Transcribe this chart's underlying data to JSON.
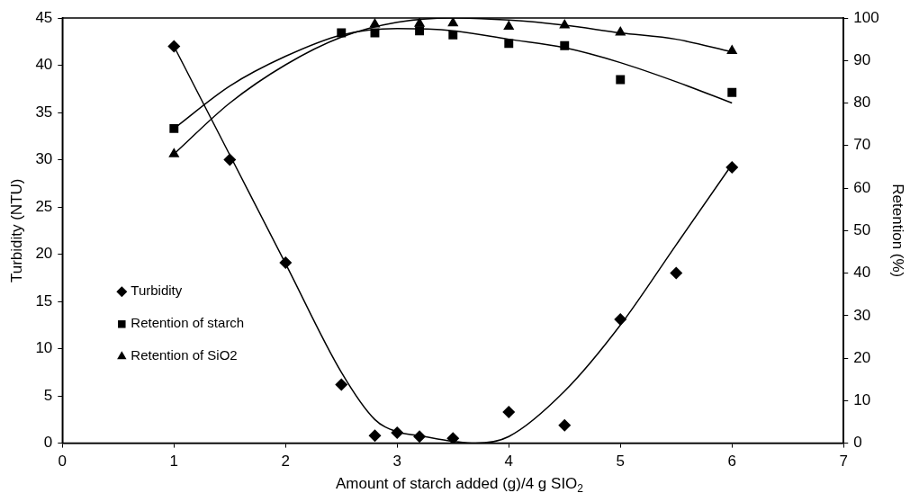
{
  "chart_data": {
    "type": "scatter",
    "xlabel": "Amount of starch added (g)/4 g SIO$_{2}$",
    "ylabel": "Turbidity (NTU)",
    "y2label": "Retention (%)",
    "xlim": [
      0,
      7
    ],
    "xticks": [
      0,
      1,
      2,
      3,
      4,
      5,
      6,
      7
    ],
    "ylim": [
      0,
      45
    ],
    "yticks": [
      0,
      5,
      10,
      15,
      20,
      25,
      30,
      35,
      40,
      45
    ],
    "y2lim": [
      0,
      100
    ],
    "y2ticks": [
      0,
      10,
      20,
      30,
      40,
      50,
      60,
      70,
      80,
      90,
      100
    ],
    "grid": false,
    "legend": "left",
    "series": [
      {
        "name": "Turbidity",
        "marker": "diamond",
        "color": "#000000",
        "x": [
          1,
          1.5,
          2,
          2.5,
          2.8,
          3,
          3.2,
          3.5,
          4,
          4.5,
          5,
          5.5,
          6
        ],
        "values": [
          42,
          30,
          19.1,
          6.2,
          0.8,
          1.1,
          0.7,
          0.5,
          3.3,
          1.9,
          13.1,
          18,
          29.2
        ]
      },
      {
        "name": "Retention of starch",
        "marker": "square",
        "axis": "y2",
        "color": "#000000",
        "x": [
          1,
          2.5,
          2.8,
          3.2,
          3.5,
          4,
          4.5,
          5,
          6
        ],
        "values": [
          74,
          96.5,
          96.5,
          97,
          96,
          94,
          93.5,
          85.5,
          82.5
        ]
      },
      {
        "name": "Retention of SiO2",
        "marker": "triangle",
        "axis": "y2",
        "color": "#000000",
        "x": [
          1,
          2.8,
          3.2,
          3.5,
          4,
          4.5,
          5,
          6
        ],
        "values": [
          68,
          98.5,
          98.7,
          98.8,
          98,
          98.3,
          96.6,
          92.3
        ]
      },
      {
        "type": "line",
        "marker": "none",
        "color": "#000000",
        "x": [
          1,
          1.5,
          2,
          2.5,
          2.8,
          3,
          3.2,
          3.5,
          3.7,
          4,
          4.5,
          5,
          5.5,
          6
        ],
        "values": [
          42,
          30.5,
          19,
          7.5,
          2.5,
          1.2,
          0.8,
          0.2,
          0,
          0.7,
          5.5,
          12.5,
          21,
          29.5
        ]
      },
      {
        "type": "line",
        "marker": "none",
        "axis": "y2",
        "color": "#000000",
        "x": [
          1,
          1.5,
          2,
          2.5,
          3,
          3.5,
          4,
          4.5,
          5,
          5.5,
          6
        ],
        "values": [
          74,
          84,
          91,
          96,
          97.5,
          97,
          95,
          93,
          89.5,
          85,
          80
        ]
      },
      {
        "type": "line",
        "marker": "none",
        "axis": "y2",
        "color": "#000000",
        "x": [
          1,
          1.5,
          2,
          2.5,
          3,
          3.5,
          4,
          4.5,
          5,
          5.5,
          6
        ],
        "values": [
          68,
          80,
          89,
          95.5,
          99,
          100,
          99.5,
          98.3,
          96.5,
          95,
          92
        ]
      }
    ]
  }
}
